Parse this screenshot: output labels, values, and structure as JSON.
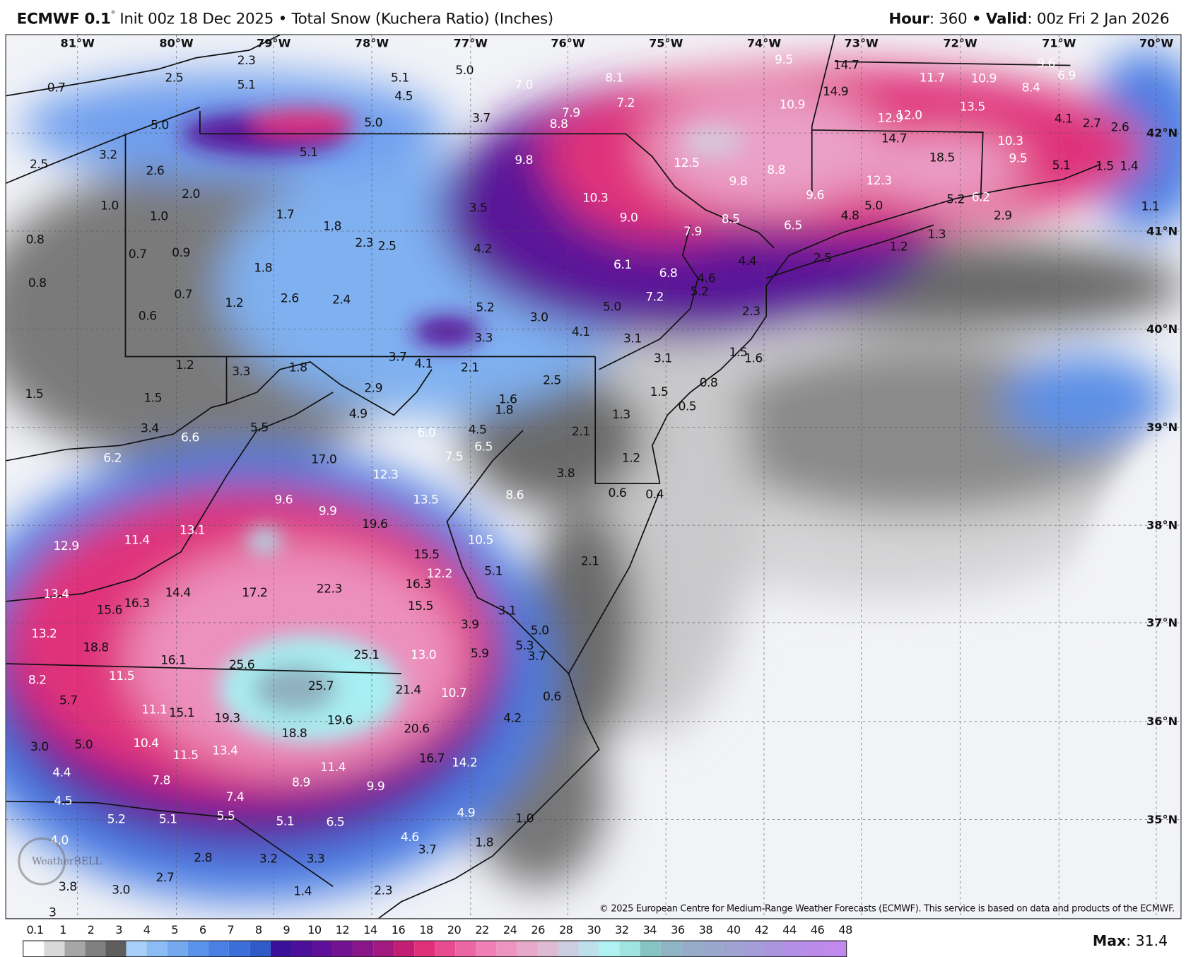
{
  "header": {
    "model": "ECMWF 0.1",
    "degree": "°",
    "init": "Init 00z 18 Dec 2025",
    "sep": "•",
    "product": "Total Snow (Kuchera Ratio) (Inches)",
    "hour_label": "Hour",
    "hour": ": 360",
    "valid_label": "Valid",
    "valid": ": 00z Fri 2 Jan 2026"
  },
  "map": {
    "longitudes": [
      "81°W",
      "80°W",
      "79°W",
      "78°W",
      "77°W",
      "76°W",
      "75°W",
      "74°W",
      "73°W",
      "72°W",
      "71°W",
      "70°W"
    ],
    "latitudes": [
      "42°N",
      "41°N",
      "40°N",
      "39°N",
      "38°N",
      "37°N",
      "36°N",
      "35°N"
    ],
    "values": [
      "0.7",
      "2.3",
      "2.5",
      "5.1",
      "5.1",
      "4.5",
      "5.0",
      "7.0",
      "8.1",
      "9.5",
      "14.7",
      "9.6",
      "6.9",
      "11.7",
      "10.9",
      "8.4",
      "14.9",
      "7.2",
      "7.9",
      "8.8",
      "3.7",
      "5.0",
      "5.0",
      "10.9",
      "12.9",
      "12.0",
      "13.5",
      "4.1",
      "2.7",
      "2.6",
      "14.7",
      "10.3",
      "18.5",
      "9.5",
      "5.1",
      "1.5",
      "1.4",
      "3.2",
      "2.5",
      "2.6",
      "5.1",
      "9.8",
      "12.5",
      "9.8",
      "8.8",
      "12.3",
      "2.0",
      "10.3",
      "9.6",
      "5.0",
      "5.2",
      "6.2",
      "2.9",
      "1.1",
      "1.0",
      "1.0",
      "1.7",
      "1.8",
      "3.5",
      "9.0",
      "8.5",
      "4.8",
      "6.5",
      "0.8",
      "7.9",
      "1.2",
      "1.3",
      "2.3",
      "2.5",
      "4.2",
      "0.7",
      "0.9",
      "2.5",
      "4.4",
      "1.8",
      "6.1",
      "6.8",
      "4.6",
      "0.8",
      "7.2",
      "5.2",
      "0.7",
      "2.6",
      "2.4",
      "1.2",
      "5.2",
      "3.0",
      "5.0",
      "2.3",
      "0.6",
      "4.1",
      "3.3",
      "3.1",
      "3.1",
      "1.5",
      "1.6",
      "3.7",
      "4.1",
      "2.1",
      "1.2",
      "3.3",
      "1.8",
      "0.8",
      "1.5",
      "0.5",
      "2.5",
      "1.5",
      "1.5",
      "2.9",
      "1.6",
      "1.8",
      "4.9",
      "1.3",
      "3.4",
      "6.6",
      "5.5",
      "6.0",
      "4.5",
      "2.1",
      "6.5",
      "7.5",
      "6.2",
      "17.0",
      "1.2",
      "12.3",
      "3.8",
      "0.6",
      "0.4",
      "13.5",
      "8.6",
      "9.6",
      "9.9",
      "19.6",
      "13.1",
      "11.4",
      "12.9",
      "10.5",
      "15.5",
      "2.1",
      "12.2",
      "5.1",
      "16.3",
      "13.4",
      "14.4",
      "17.2",
      "22.3",
      "15.6",
      "16.3",
      "15.5",
      "3.1",
      "3.9",
      "5.0",
      "13.2",
      "18.8",
      "5.3",
      "5.9",
      "3.7",
      "16.1",
      "25.6",
      "25.1",
      "13.0",
      "8.2",
      "11.5",
      "25.7",
      "21.4",
      "10.7",
      "0.6",
      "5.7",
      "11.1",
      "15.1",
      "19.3",
      "19.6",
      "4.2",
      "18.8",
      "20.6",
      "3.0",
      "5.0",
      "10.4",
      "11.5",
      "13.4",
      "16.7",
      "14.2",
      "4.4",
      "11.4",
      "7.8",
      "8.9",
      "9.9",
      "4.5",
      "7.4",
      "4.9",
      "5.2",
      "5.1",
      "5.5",
      "5.1",
      "6.5",
      "1.0",
      "4.0",
      "4.6",
      "1.8",
      "3.7",
      "2.8",
      "3.2",
      "3.3",
      "2.7",
      "3.8",
      "3.0",
      "1.4",
      "2.3",
      "3"
    ],
    "copyright": "© 2025 European Centre for Medium-Range Weather Forecasts (ECMWF). This service is based on data and products of the ECMWF.",
    "logo": "WeatherBELL"
  },
  "legend": {
    "ticks": [
      "0.1",
      "1",
      "2",
      "3",
      "4",
      "5",
      "6",
      "7",
      "8",
      "9",
      "10",
      "12",
      "14",
      "16",
      "18",
      "20",
      "22",
      "24",
      "26",
      "28",
      "30",
      "32",
      "34",
      "36",
      "38",
      "40",
      "42",
      "44",
      "46",
      "48"
    ],
    "colors": [
      "#ffffff",
      "#d9d9d9",
      "#a6a6a6",
      "#808080",
      "#5e5e5e",
      "#a7cff7",
      "#8bbcf4",
      "#75a8ef",
      "#5c93ea",
      "#4a80e4",
      "#3c6ed8",
      "#2e5bc7",
      "#3a0f9a",
      "#4b0f9c",
      "#5e1198",
      "#731391",
      "#891689",
      "#a01a80",
      "#c21e74",
      "#e0307a",
      "#e74b91",
      "#ec66a4",
      "#ef7fb4",
      "#ec95c0",
      "#e8a8c9",
      "#dfbad3",
      "#cccde0",
      "#bde0ec",
      "#b0f2f4",
      "#9fe4de",
      "#86c4c4",
      "#8fb5c4",
      "#96acc8",
      "#9aa6cc",
      "#a0a2d2",
      "#a59dd8",
      "#ab96de",
      "#b58ee6",
      "#bc8bea",
      "#c189ee"
    ],
    "max_label": "Max",
    "max_value": ": 31.4"
  }
}
